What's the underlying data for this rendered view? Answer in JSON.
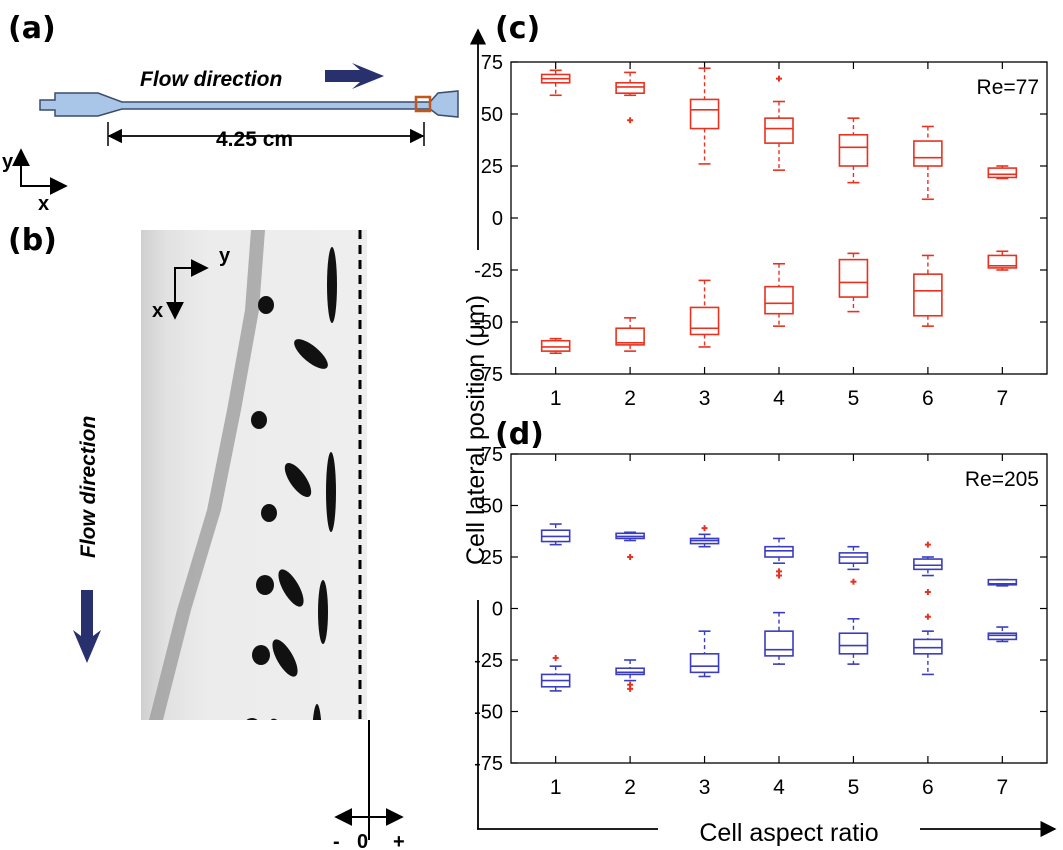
{
  "panels": {
    "a": "(a)",
    "b": "(b)",
    "c": "(c)",
    "d": "(d)"
  },
  "panel_a": {
    "flow_label": "Flow direction",
    "length_label": "4.25 cm",
    "axis_y": "y",
    "axis_x": "x"
  },
  "panel_b": {
    "flow_label": "Flow direction",
    "axis_y": "y",
    "axis_x": "x",
    "scale_minus": "-",
    "scale_zero": "0",
    "scale_plus": "+"
  },
  "colors": {
    "top_series": "#e8321f",
    "bottom_series": "#3a3dbf",
    "outlier": "#e8321f",
    "channel": "#a9c6e8",
    "channel_stroke": "#3c4c6a",
    "arrow": "#28306e",
    "marker_box": "#c0571d"
  },
  "chart_data": [
    {
      "type": "box",
      "panel": "(c)",
      "annotation": "Re=77",
      "xlabel": "Cell aspect ratio",
      "ylabel": "Cell lateral position (μm)",
      "ylim": [
        -75,
        75
      ],
      "yticks": [
        75,
        50,
        25,
        0,
        -25,
        -50,
        -75
      ],
      "categories": [
        "1",
        "2",
        "3",
        "4",
        "5",
        "6",
        "7"
      ],
      "series": [
        {
          "boxes": [
            {
              "min": 59,
              "q1": 65,
              "median": 67,
              "q3": 69,
              "max": 71,
              "outliers": []
            },
            {
              "min": 59,
              "q1": 60,
              "median": 63,
              "q3": 65,
              "max": 70,
              "outliers": [
                47
              ]
            },
            {
              "min": 26,
              "q1": 43,
              "median": 52,
              "q3": 57,
              "max": 72,
              "outliers": []
            },
            {
              "min": 23,
              "q1": 36,
              "median": 43,
              "q3": 48,
              "max": 56,
              "outliers": [
                67
              ]
            },
            {
              "min": 17,
              "q1": 25,
              "median": 34,
              "q3": 40,
              "max": 48,
              "outliers": []
            },
            {
              "min": 9,
              "q1": 25,
              "median": 29,
              "q3": 37,
              "max": 44,
              "outliers": []
            },
            {
              "min": 19,
              "q1": 19.5,
              "median": 21,
              "q3": 24,
              "max": 25,
              "outliers": []
            }
          ]
        },
        {
          "boxes": [
            {
              "min": -65,
              "q1": -64,
              "median": -62,
              "q3": -59,
              "max": -58,
              "outliers": []
            },
            {
              "min": -64,
              "q1": -61,
              "median": -60,
              "q3": -53,
              "max": -48,
              "outliers": []
            },
            {
              "min": -62,
              "q1": -56,
              "median": -53,
              "q3": -43,
              "max": -30,
              "outliers": []
            },
            {
              "min": -52,
              "q1": -46,
              "median": -41,
              "q3": -33,
              "max": -22,
              "outliers": []
            },
            {
              "min": -45,
              "q1": -38,
              "median": -31,
              "q3": -20,
              "max": -17,
              "outliers": []
            },
            {
              "min": -52,
              "q1": -47,
              "median": -35,
              "q3": -27,
              "max": -18,
              "outliers": []
            },
            {
              "min": -25,
              "q1": -24,
              "median": -23,
              "q3": -18,
              "max": -16,
              "outliers": []
            }
          ]
        }
      ]
    },
    {
      "type": "box",
      "panel": "(d)",
      "annotation": "Re=205",
      "xlabel": "Cell aspect ratio",
      "ylabel": "Cell lateral position (μm)",
      "ylim": [
        -75,
        75
      ],
      "yticks": [
        75,
        50,
        25,
        0,
        -25,
        -50,
        -75
      ],
      "categories": [
        "1",
        "2",
        "3",
        "4",
        "5",
        "6",
        "7"
      ],
      "series": [
        {
          "boxes": [
            {
              "min": 31,
              "q1": 32.5,
              "median": 35,
              "q3": 38,
              "max": 41,
              "outliers": []
            },
            {
              "min": 33,
              "q1": 34,
              "median": 35,
              "q3": 36.5,
              "max": 37,
              "outliers": [
                25
              ]
            },
            {
              "min": 30,
              "q1": 31.5,
              "median": 33,
              "q3": 34,
              "max": 36,
              "outliers": [
                39
              ]
            },
            {
              "min": 22,
              "q1": 25,
              "median": 28,
              "q3": 30,
              "max": 34,
              "outliers": [
                18,
                16
              ]
            },
            {
              "min": 19,
              "q1": 22,
              "median": 25,
              "q3": 27,
              "max": 30,
              "outliers": [
                13
              ]
            },
            {
              "min": 16,
              "q1": 19,
              "median": 21,
              "q3": 24,
              "max": 25,
              "outliers": [
                31,
                8,
                -4
              ]
            },
            {
              "min": 11,
              "q1": 11.5,
              "median": 12,
              "q3": 14,
              "max": 14,
              "outliers": []
            }
          ]
        },
        {
          "boxes": [
            {
              "min": -40,
              "q1": -38,
              "median": -35,
              "q3": -32,
              "max": -28,
              "outliers": [
                -24
              ]
            },
            {
              "min": -35,
              "q1": -32,
              "median": -31,
              "q3": -29,
              "max": -25,
              "outliers": [
                -37,
                -39
              ]
            },
            {
              "min": -33,
              "q1": -31,
              "median": -28,
              "q3": -22,
              "max": -11,
              "outliers": []
            },
            {
              "min": -27,
              "q1": -23,
              "median": -20,
              "q3": -11,
              "max": -2,
              "outliers": []
            },
            {
              "min": -27,
              "q1": -22,
              "median": -18,
              "q3": -12,
              "max": -5,
              "outliers": []
            },
            {
              "min": -32,
              "q1": -22,
              "median": -19,
              "q3": -15,
              "max": -11,
              "outliers": []
            },
            {
              "min": -16,
              "q1": -15,
              "median": -13,
              "q3": -12,
              "max": -9,
              "outliers": []
            }
          ]
        }
      ]
    }
  ]
}
